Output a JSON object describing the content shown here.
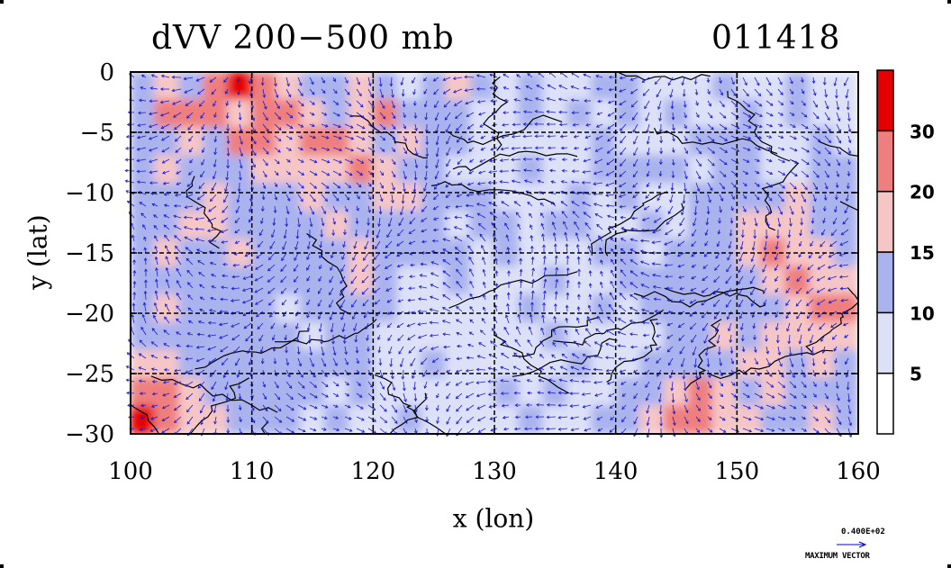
{
  "chart_data": {
    "type": "heatmap",
    "title": "dVV 200−500 mb",
    "time_stamp": "011418",
    "xlabel": "x (lon)",
    "ylabel": "y (lat)",
    "xlim": [
      100,
      160
    ],
    "ylim": [
      -30,
      0
    ],
    "x_ticks": [
      "100",
      "110",
      "120",
      "130",
      "140",
      "150",
      "160"
    ],
    "y_ticks": [
      "0",
      "−5",
      "−10",
      "−15",
      "−20",
      "−25",
      "−30"
    ],
    "grid": true,
    "colorbar": {
      "levels": [
        0,
        5,
        10,
        15,
        20,
        30
      ],
      "labels": [
        "5",
        "10",
        "15",
        "20",
        "30"
      ],
      "colors": [
        "#ffffff",
        "#dde1f8",
        "#aab3ee",
        "#f6c6c6",
        "#ef7f7f",
        "#e50000"
      ]
    },
    "vector_key": {
      "value": "0.400E+02",
      "label": "MAXIMUM VECTOR"
    },
    "field_cells": [
      [
        2,
        3,
        2,
        4,
        5,
        4,
        3,
        2,
        2,
        3,
        2,
        1,
        2,
        3,
        2,
        1,
        2,
        1,
        1,
        2,
        2,
        1,
        1,
        1,
        2,
        1,
        1,
        2,
        1,
        1
      ],
      [
        2,
        4,
        4,
        4,
        3,
        4,
        4,
        3,
        2,
        3,
        4,
        2,
        2,
        2,
        1,
        1,
        2,
        1,
        2,
        1,
        2,
        1,
        2,
        1,
        1,
        2,
        1,
        2,
        1,
        1
      ],
      [
        2,
        2,
        3,
        2,
        4,
        4,
        3,
        4,
        4,
        3,
        2,
        3,
        2,
        2,
        1,
        1,
        1,
        1,
        1,
        2,
        1,
        1,
        1,
        2,
        2,
        2,
        1,
        1,
        2,
        1
      ],
      [
        2,
        3,
        2,
        2,
        2,
        3,
        3,
        3,
        3,
        4,
        3,
        2,
        2,
        1,
        1,
        1,
        2,
        1,
        1,
        2,
        2,
        2,
        2,
        1,
        2,
        2,
        1,
        1,
        2,
        2
      ],
      [
        2,
        2,
        2,
        3,
        2,
        2,
        2,
        3,
        2,
        2,
        3,
        3,
        2,
        2,
        2,
        1,
        1,
        1,
        2,
        1,
        2,
        1,
        1,
        2,
        2,
        2,
        2,
        3,
        2,
        2
      ],
      [
        2,
        2,
        3,
        3,
        2,
        2,
        2,
        2,
        3,
        2,
        2,
        2,
        2,
        1,
        2,
        2,
        1,
        2,
        2,
        1,
        1,
        2,
        1,
        2,
        2,
        3,
        3,
        3,
        2,
        2
      ],
      [
        2,
        3,
        2,
        2,
        3,
        2,
        2,
        2,
        2,
        3,
        2,
        2,
        2,
        2,
        1,
        2,
        1,
        1,
        1,
        2,
        2,
        1,
        2,
        2,
        2,
        3,
        4,
        3,
        3,
        2
      ],
      [
        2,
        2,
        2,
        2,
        2,
        2,
        2,
        2,
        2,
        3,
        2,
        1,
        1,
        2,
        1,
        1,
        1,
        2,
        1,
        1,
        2,
        2,
        2,
        2,
        2,
        2,
        3,
        4,
        3,
        3
      ],
      [
        2,
        3,
        2,
        2,
        2,
        2,
        1,
        2,
        2,
        2,
        2,
        1,
        1,
        1,
        1,
        1,
        2,
        1,
        1,
        2,
        1,
        2,
        2,
        2,
        2,
        2,
        2,
        3,
        4,
        4
      ],
      [
        2,
        2,
        2,
        2,
        2,
        2,
        2,
        1,
        2,
        2,
        1,
        1,
        1,
        1,
        1,
        1,
        1,
        2,
        1,
        1,
        1,
        1,
        2,
        2,
        3,
        2,
        3,
        3,
        3,
        3
      ],
      [
        3,
        3,
        2,
        2,
        2,
        2,
        2,
        2,
        2,
        2,
        1,
        1,
        2,
        1,
        1,
        1,
        1,
        1,
        2,
        1,
        1,
        2,
        2,
        2,
        2,
        3,
        3,
        2,
        3,
        2
      ],
      [
        4,
        4,
        3,
        2,
        2,
        2,
        2,
        2,
        1,
        2,
        1,
        1,
        1,
        1,
        1,
        2,
        1,
        2,
        1,
        1,
        2,
        2,
        3,
        4,
        3,
        2,
        3,
        2,
        2,
        2
      ],
      [
        5,
        4,
        3,
        3,
        2,
        2,
        2,
        1,
        2,
        1,
        1,
        2,
        1,
        1,
        1,
        1,
        2,
        1,
        1,
        2,
        2,
        3,
        4,
        4,
        3,
        3,
        2,
        2,
        3,
        2
      ]
    ]
  }
}
